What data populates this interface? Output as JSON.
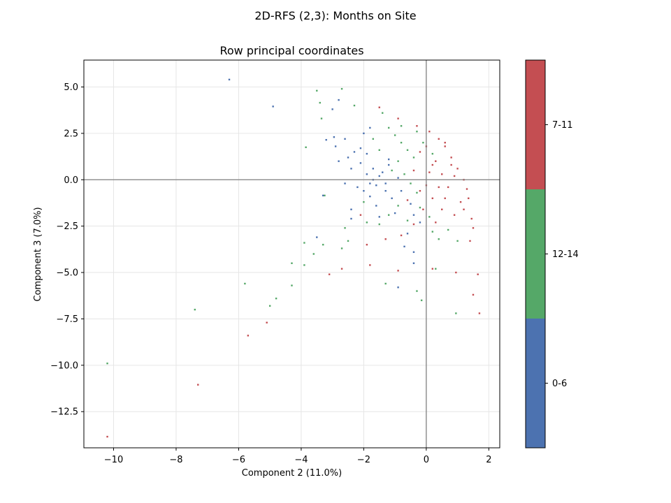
{
  "figure": {
    "suptitle": "2D-RFS (2,3): Months on Site"
  },
  "chart_data": {
    "type": "scatter",
    "title": "Row principal coordinates",
    "xlabel": "Component 2 (11.0%)",
    "ylabel": "Component 3 (7.0%)",
    "xlim": [
      -10.95,
      2.35
    ],
    "ylim": [
      -14.45,
      6.45
    ],
    "xticks": [
      -10,
      -8,
      -6,
      -4,
      -2,
      0,
      2
    ],
    "xtick_labels": [
      "−10",
      "−8",
      "−6",
      "−4",
      "−2",
      "0",
      "2"
    ],
    "yticks": [
      5.0,
      2.5,
      0.0,
      -2.5,
      -5.0,
      -7.5,
      -10.0,
      -12.5
    ],
    "ytick_labels": [
      "5.0",
      "2.5",
      "0.0",
      "−2.5",
      "−5.0",
      "−7.5",
      "−10.0",
      "−12.5"
    ],
    "grid": true,
    "reference_lines": {
      "x": 0,
      "y": 0
    },
    "colorbar": {
      "position": "right",
      "categories": [
        "0-6",
        "12-14",
        "7-11"
      ],
      "colors": [
        "#4c72b0",
        "#55a868",
        "#c44e52"
      ]
    },
    "series": [
      {
        "name": "0-6",
        "color": "#4c72b0",
        "points": [
          [
            -6.3,
            5.4
          ],
          [
            -4.9,
            3.95
          ],
          [
            -2.8,
            4.3
          ],
          [
            -3.0,
            3.8
          ],
          [
            -2.95,
            2.3
          ],
          [
            -3.2,
            2.15
          ],
          [
            -2.6,
            2.2
          ],
          [
            -2.3,
            1.5
          ],
          [
            -2.5,
            1.2
          ],
          [
            -2.8,
            1.0
          ],
          [
            -2.9,
            1.8
          ],
          [
            -2.1,
            1.7
          ],
          [
            -2.0,
            2.5
          ],
          [
            -1.8,
            2.8
          ],
          [
            -2.4,
            0.6
          ],
          [
            -2.6,
            -0.2
          ],
          [
            -2.4,
            -1.6
          ],
          [
            -3.3,
            -0.85
          ],
          [
            -3.5,
            -3.1
          ],
          [
            -2.4,
            -2.1
          ],
          [
            -2.2,
            -0.4
          ],
          [
            -2.0,
            -0.6
          ],
          [
            -1.8,
            -0.9
          ],
          [
            -1.6,
            -1.4
          ],
          [
            -1.5,
            -2.0
          ],
          [
            -1.4,
            0.4
          ],
          [
            -1.3,
            -0.2
          ],
          [
            -1.2,
            0.8
          ],
          [
            -1.1,
            -1.0
          ],
          [
            -1.0,
            -1.8
          ],
          [
            -0.9,
            0.1
          ],
          [
            -0.8,
            -0.6
          ],
          [
            -0.5,
            -1.3
          ],
          [
            -0.4,
            -1.9
          ],
          [
            -0.2,
            -2.3
          ],
          [
            -0.6,
            -2.9
          ],
          [
            -0.7,
            -3.6
          ],
          [
            -0.4,
            -3.9
          ],
          [
            -0.4,
            -4.5
          ],
          [
            -0.9,
            -5.8
          ],
          [
            -1.7,
            0.0
          ],
          [
            -1.6,
            -0.3
          ],
          [
            -1.5,
            0.2
          ],
          [
            -1.7,
            0.6
          ],
          [
            -1.9,
            0.3
          ],
          [
            -2.1,
            0.9
          ],
          [
            -1.9,
            1.4
          ],
          [
            -1.2,
            1.1
          ],
          [
            -1.3,
            -0.6
          ],
          [
            -1.8,
            -0.2
          ]
        ]
      },
      {
        "name": "12-14",
        "color": "#55a868",
        "points": [
          [
            -3.5,
            4.8
          ],
          [
            -2.7,
            4.9
          ],
          [
            -2.3,
            4.0
          ],
          [
            -1.4,
            3.6
          ],
          [
            -3.4,
            4.15
          ],
          [
            -3.35,
            3.3
          ],
          [
            -3.85,
            1.75
          ],
          [
            -3.25,
            -0.85
          ],
          [
            -3.9,
            -3.4
          ],
          [
            -3.3,
            -3.5
          ],
          [
            -3.6,
            -4.0
          ],
          [
            -3.9,
            -4.6
          ],
          [
            -4.3,
            -4.5
          ],
          [
            -4.3,
            -5.7
          ],
          [
            -5.8,
            -5.6
          ],
          [
            -4.8,
            -6.4
          ],
          [
            -5.0,
            -6.8
          ],
          [
            -7.4,
            -7.0
          ],
          [
            -10.2,
            -9.9
          ],
          [
            -2.6,
            -2.6
          ],
          [
            -2.7,
            -3.7
          ],
          [
            -2.5,
            -3.3
          ],
          [
            -1.3,
            -5.6
          ],
          [
            -0.3,
            -6.0
          ],
          [
            -0.15,
            -6.5
          ],
          [
            0.3,
            -4.8
          ],
          [
            0.95,
            -7.2
          ],
          [
            0.4,
            -3.2
          ],
          [
            0.7,
            -2.7
          ],
          [
            1.0,
            -3.3
          ],
          [
            -1.2,
            2.8
          ],
          [
            -1.0,
            2.4
          ],
          [
            -0.8,
            2.0
          ],
          [
            -0.6,
            1.6
          ],
          [
            -0.4,
            1.2
          ],
          [
            -0.9,
            1.0
          ],
          [
            -1.1,
            0.5
          ],
          [
            -0.7,
            0.3
          ],
          [
            -0.5,
            -0.2
          ],
          [
            -0.3,
            -0.7
          ],
          [
            -0.9,
            -1.4
          ],
          [
            -1.2,
            -1.9
          ],
          [
            -0.6,
            -2.2
          ],
          [
            -0.2,
            -1.5
          ],
          [
            0.1,
            -2.0
          ],
          [
            0.2,
            -2.8
          ],
          [
            -1.5,
            -2.4
          ],
          [
            -1.9,
            -2.3
          ],
          [
            -2.0,
            -1.2
          ],
          [
            -1.5,
            1.6
          ],
          [
            -1.7,
            2.2
          ],
          [
            -0.3,
            2.6
          ],
          [
            -0.1,
            2.0
          ],
          [
            0.2,
            1.4
          ],
          [
            -0.8,
            2.9
          ]
        ]
      },
      {
        "name": "7-11",
        "color": "#c44e52",
        "points": [
          [
            -10.2,
            -13.85
          ],
          [
            -7.3,
            -11.05
          ],
          [
            -5.7,
            -8.4
          ],
          [
            -5.1,
            -7.7
          ],
          [
            -2.7,
            -4.8
          ],
          [
            -3.1,
            -5.1
          ],
          [
            -1.8,
            -4.6
          ],
          [
            -0.9,
            -4.9
          ],
          [
            0.2,
            -4.8
          ],
          [
            0.95,
            -5.0
          ],
          [
            1.65,
            -5.1
          ],
          [
            1.5,
            -6.2
          ],
          [
            1.7,
            -7.2
          ],
          [
            1.5,
            -2.6
          ],
          [
            1.4,
            -3.3
          ],
          [
            -1.5,
            3.9
          ],
          [
            -0.9,
            3.3
          ],
          [
            -0.3,
            2.9
          ],
          [
            0.1,
            2.6
          ],
          [
            0.4,
            2.2
          ],
          [
            0.6,
            1.8
          ],
          [
            0.8,
            1.2
          ],
          [
            1.0,
            0.6
          ],
          [
            1.2,
            0.0
          ],
          [
            1.3,
            -0.5
          ],
          [
            1.35,
            -1.0
          ],
          [
            1.2,
            -1.6
          ],
          [
            0.9,
            -1.9
          ],
          [
            0.5,
            -1.6
          ],
          [
            0.2,
            -1.0
          ],
          [
            0.0,
            -0.3
          ],
          [
            0.1,
            0.4
          ],
          [
            0.3,
            1.0
          ],
          [
            0.5,
            0.3
          ],
          [
            0.7,
            -0.4
          ],
          [
            0.9,
            0.2
          ],
          [
            0.6,
            -1.0
          ],
          [
            0.4,
            -0.4
          ],
          [
            0.2,
            0.8
          ],
          [
            -0.2,
            1.5
          ],
          [
            -0.4,
            0.5
          ],
          [
            -0.2,
            -0.6
          ],
          [
            -0.1,
            -1.6
          ],
          [
            -0.4,
            -2.4
          ],
          [
            -0.8,
            -3.0
          ],
          [
            -1.3,
            -3.2
          ],
          [
            -1.9,
            -3.5
          ],
          [
            -2.1,
            -1.9
          ],
          [
            0.0,
            1.8
          ],
          [
            0.8,
            0.8
          ],
          [
            1.1,
            -1.2
          ],
          [
            0.3,
            -2.3
          ],
          [
            -0.6,
            -1.1
          ],
          [
            0.6,
            2.0
          ],
          [
            1.45,
            -2.1
          ]
        ]
      }
    ]
  }
}
